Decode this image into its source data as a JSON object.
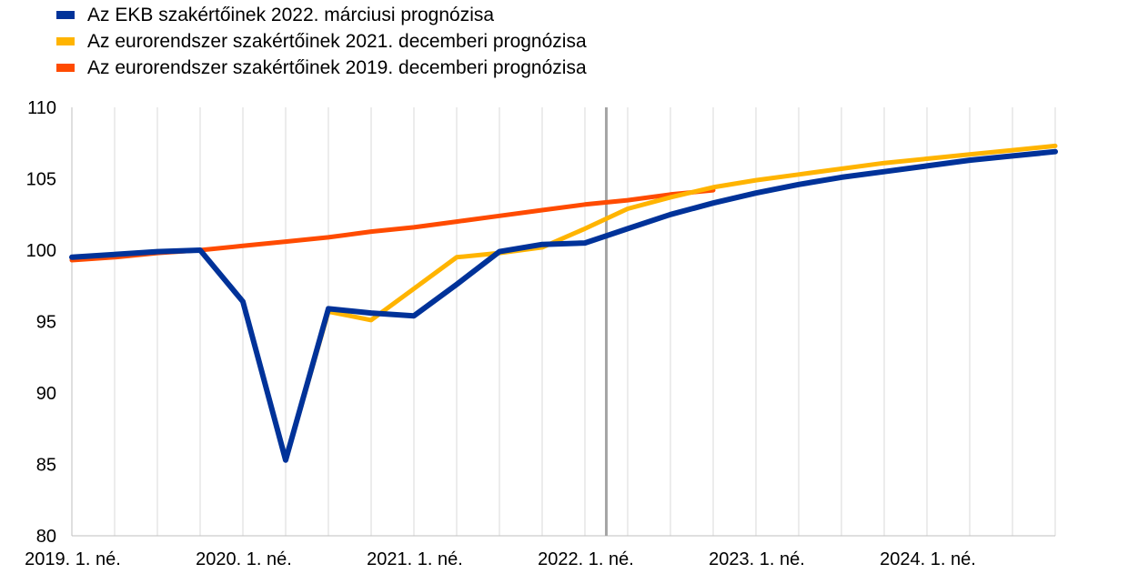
{
  "chart_data": {
    "type": "line",
    "title": "",
    "xlabel": "",
    "ylabel": "",
    "ylim": [
      80,
      110
    ],
    "yticks": [
      "80",
      "85",
      "90",
      "95",
      "100",
      "105",
      "110"
    ],
    "xticks": [
      {
        "label": "2019. 1. né.",
        "q": 0
      },
      {
        "label": "2020. 1. né.",
        "q": 4
      },
      {
        "label": "2021. 1. né.",
        "q": 8
      },
      {
        "label": "2022. 1. né.",
        "q": 12
      },
      {
        "label": "2023. 1. né.",
        "q": 16
      },
      {
        "label": "2024. 1. né.",
        "q": 20
      }
    ],
    "x_range": [
      "2019. 1. né.",
      "2024. 4. né."
    ],
    "vertical_marker": {
      "at": "2022. 1. né.",
      "color": "#a6a6a6"
    },
    "grid": "vertical",
    "legend_position": "top-left",
    "series": [
      {
        "name": "Az eurorendszer szakértőinek 2019. decemberi prognózisa",
        "color": "#ff4b00",
        "x": [
          "2019 Q1",
          "2019 Q2",
          "2019 Q3",
          "2019 Q4",
          "2020 Q1",
          "2020 Q2",
          "2020 Q3",
          "2020 Q4",
          "2021 Q1",
          "2021 Q2",
          "2021 Q3",
          "2021 Q4",
          "2022 Q1",
          "2022 Q2",
          "2022 Q3",
          "2022 Q4"
        ],
        "values": [
          99.3,
          99.5,
          99.8,
          100.0,
          100.3,
          100.6,
          100.9,
          101.3,
          101.6,
          102.0,
          102.4,
          102.8,
          103.2,
          103.5,
          103.9,
          104.2
        ]
      },
      {
        "name": "Az eurorendszer szakértőinek 2021. decemberi prognózisa",
        "color": "#ffb400",
        "x": [
          "2019 Q1",
          "2019 Q2",
          "2019 Q3",
          "2019 Q4",
          "2020 Q1",
          "2020 Q2",
          "2020 Q3",
          "2020 Q4",
          "2021 Q1",
          "2021 Q2",
          "2021 Q3",
          "2021 Q4",
          "2022 Q1",
          "2022 Q2",
          "2022 Q3",
          "2022 Q4",
          "2023 Q1",
          "2023 Q2",
          "2023 Q3",
          "2023 Q4",
          "2024 Q1",
          "2024 Q2",
          "2024 Q3",
          "2024 Q4"
        ],
        "values": [
          99.5,
          99.7,
          99.9,
          100.0,
          96.4,
          85.3,
          95.7,
          95.1,
          97.3,
          99.5,
          99.8,
          100.2,
          101.5,
          102.9,
          103.7,
          104.4,
          104.9,
          105.3,
          105.7,
          106.1,
          106.4,
          106.7,
          107.0,
          107.3
        ]
      },
      {
        "name": "Az EKB szakértőinek 2022. márciusi prognózisa",
        "color": "#003299",
        "x": [
          "2019 Q1",
          "2019 Q2",
          "2019 Q3",
          "2019 Q4",
          "2020 Q1",
          "2020 Q2",
          "2020 Q3",
          "2020 Q4",
          "2021 Q1",
          "2021 Q2",
          "2021 Q3",
          "2021 Q4",
          "2022 Q1",
          "2022 Q2",
          "2022 Q3",
          "2022 Q4",
          "2023 Q1",
          "2023 Q2",
          "2023 Q3",
          "2023 Q4",
          "2024 Q1",
          "2024 Q2",
          "2024 Q3",
          "2024 Q4"
        ],
        "values": [
          99.5,
          99.7,
          99.9,
          100.0,
          96.4,
          85.3,
          95.9,
          95.6,
          95.4,
          97.6,
          99.9,
          100.4,
          100.5,
          101.5,
          102.5,
          103.3,
          104.0,
          104.6,
          105.1,
          105.5,
          105.9,
          106.3,
          106.6,
          106.9
        ]
      }
    ],
    "legend": [
      {
        "label": "Az EKB szakértőinek 2022. márciusi prognózisa",
        "color": "#003299"
      },
      {
        "label": "Az eurorendszer szakértőinek 2021. decemberi prognózisa",
        "color": "#ffb400"
      },
      {
        "label": "Az eurorendszer szakértőinek 2019. decemberi prognózisa",
        "color": "#ff4b00"
      }
    ]
  }
}
